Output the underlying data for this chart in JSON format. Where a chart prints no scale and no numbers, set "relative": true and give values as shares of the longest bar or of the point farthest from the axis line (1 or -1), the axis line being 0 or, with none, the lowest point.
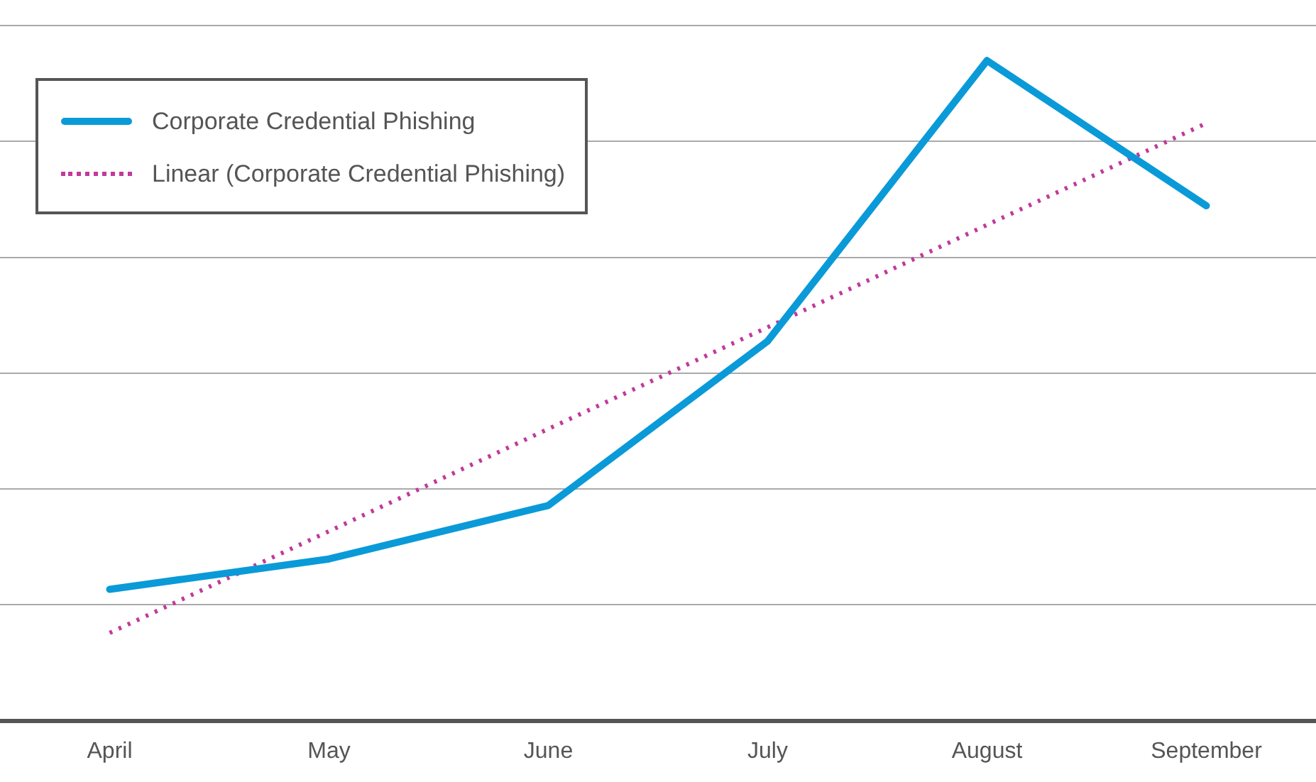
{
  "chart_data": {
    "type": "line",
    "relative": true,
    "categories": [
      "April",
      "May",
      "June",
      "July",
      "August",
      "September"
    ],
    "series": [
      {
        "name": "Corporate Credential Phishing",
        "color": "#0a9ad8",
        "line_style": "solid",
        "values": [
          0.199,
          0.245,
          0.326,
          0.575,
          1,
          0.78
        ]
      },
      {
        "name": "Linear (Corporate Credential Phishing)",
        "color": "#c2399b",
        "line_style": "dotted",
        "values": [
          0.133,
          0.287,
          0.442,
          0.596,
          0.751,
          0.905
        ]
      }
    ],
    "grid": "y",
    "legend": "top left",
    "marker": "none"
  }
}
